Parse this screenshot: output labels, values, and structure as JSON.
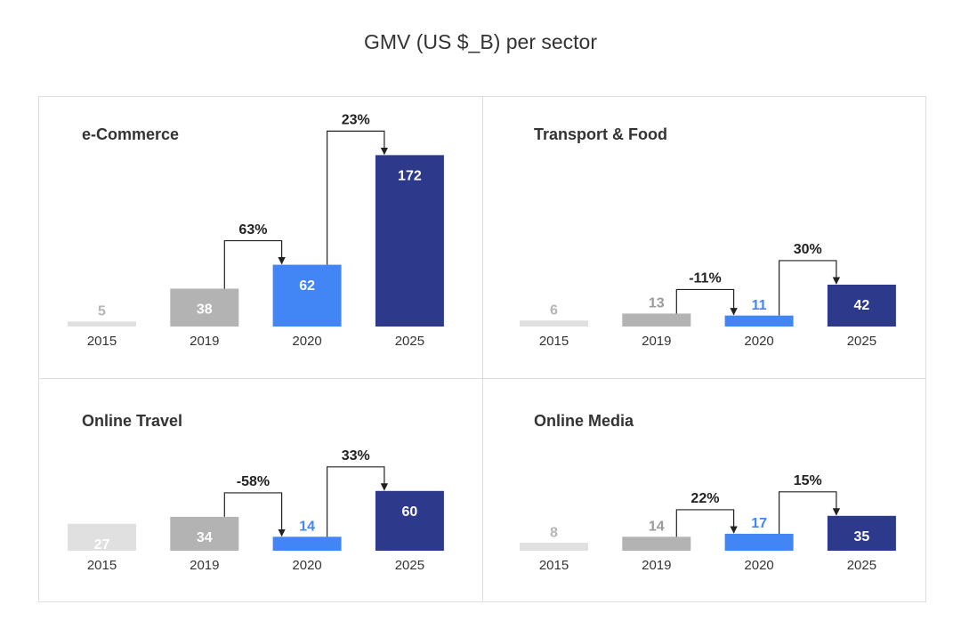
{
  "title": "GMV (US $_B) per sector",
  "chart_data": [
    {
      "type": "bar",
      "title": "e-Commerce",
      "categories": [
        "2015",
        "2019",
        "2020",
        "2025"
      ],
      "values": [
        5,
        38,
        62,
        172
      ],
      "colors": [
        "#e0e0e0",
        "#b3b3b3",
        "#4285f4",
        "#2d3a8c"
      ],
      "annotations": [
        "63%",
        "23%"
      ]
    },
    {
      "type": "bar",
      "title": "Transport & Food",
      "categories": [
        "2015",
        "2019",
        "2020",
        "2025"
      ],
      "values": [
        6,
        13,
        11,
        42
      ],
      "colors": [
        "#e0e0e0",
        "#b3b3b3",
        "#4285f4",
        "#2d3a8c"
      ],
      "annotations": [
        "-11%",
        "30%"
      ]
    },
    {
      "type": "bar",
      "title": "Online Travel",
      "categories": [
        "2015",
        "2019",
        "2020",
        "2025"
      ],
      "values": [
        27,
        34,
        14,
        60
      ],
      "colors": [
        "#e0e0e0",
        "#b3b3b3",
        "#4285f4",
        "#2d3a8c"
      ],
      "annotations": [
        "-58%",
        "33%"
      ]
    },
    {
      "type": "bar",
      "title": "Online Media",
      "categories": [
        "2015",
        "2019",
        "2020",
        "2025"
      ],
      "values": [
        8,
        14,
        17,
        35
      ],
      "colors": [
        "#e0e0e0",
        "#b3b3b3",
        "#4285f4",
        "#2d3a8c"
      ],
      "annotations": [
        "22%",
        "15%"
      ]
    }
  ]
}
